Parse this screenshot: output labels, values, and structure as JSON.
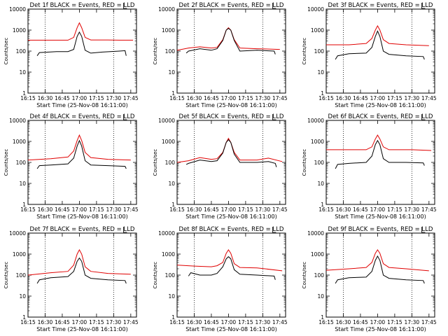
{
  "chart_data": {
    "type": "line",
    "title_template": "Det {n}f BLACK = Events, RED = LLD",
    "start_time_label": "Start Time (25-Nov-08 16:11:00)",
    "ylabel": "Counts/sec",
    "x_ticks": [
      "16:15",
      "16:30",
      "16:45",
      "17:00",
      "17:15",
      "17:30",
      "17:45"
    ],
    "y_ticks": [
      "1",
      "10",
      "100",
      "1000",
      "10000"
    ],
    "yscale": "log",
    "ylim": [
      1,
      10000
    ],
    "xlim_minutes": [
      0,
      95
    ],
    "vlines": [
      "16:30",
      "17:30"
    ],
    "series_colors": {
      "events": "#000000",
      "lld": "#e00000"
    },
    "panels": [
      {
        "title": "Det 1f BLACK = Events, RED = LLD",
        "lld": [
          [
            0,
            330
          ],
          [
            25,
            330
          ],
          [
            35,
            330
          ],
          [
            40,
            450
          ],
          [
            43,
            1300
          ],
          [
            45,
            2200
          ],
          [
            47,
            1300
          ],
          [
            50,
            450
          ],
          [
            55,
            340
          ],
          [
            70,
            340
          ],
          [
            80,
            330
          ],
          [
            92,
            330
          ]
        ],
        "events": [
          [
            8,
            60
          ],
          [
            10,
            85
          ],
          [
            25,
            95
          ],
          [
            35,
            95
          ],
          [
            40,
            120
          ],
          [
            43,
            500
          ],
          [
            45,
            800
          ],
          [
            47,
            500
          ],
          [
            50,
            110
          ],
          [
            55,
            80
          ],
          [
            65,
            90
          ],
          [
            80,
            100
          ],
          [
            85,
            105
          ],
          [
            86,
            60
          ]
        ]
      },
      {
        "title": "Det 2f BLACK = Events, RED = LLD",
        "lld": [
          [
            0,
            110
          ],
          [
            10,
            140
          ],
          [
            20,
            160
          ],
          [
            30,
            140
          ],
          [
            35,
            150
          ],
          [
            40,
            350
          ],
          [
            43,
            1000
          ],
          [
            45,
            1300
          ],
          [
            47,
            1000
          ],
          [
            50,
            350
          ],
          [
            55,
            140
          ],
          [
            70,
            130
          ],
          [
            90,
            120
          ]
        ],
        "events": [
          [
            8,
            80
          ],
          [
            10,
            100
          ],
          [
            20,
            130
          ],
          [
            30,
            110
          ],
          [
            35,
            130
          ],
          [
            40,
            320
          ],
          [
            43,
            1000
          ],
          [
            45,
            1200
          ],
          [
            47,
            1000
          ],
          [
            50,
            320
          ],
          [
            55,
            100
          ],
          [
            70,
            110
          ],
          [
            85,
            100
          ],
          [
            86,
            70
          ]
        ]
      },
      {
        "title": "Det 3f BLACK = Events, RED = LLD",
        "lld": [
          [
            0,
            200
          ],
          [
            20,
            200
          ],
          [
            35,
            230
          ],
          [
            40,
            400
          ],
          [
            43,
            1000
          ],
          [
            45,
            1600
          ],
          [
            47,
            1000
          ],
          [
            50,
            350
          ],
          [
            55,
            230
          ],
          [
            70,
            200
          ],
          [
            90,
            180
          ]
        ],
        "events": [
          [
            8,
            40
          ],
          [
            10,
            60
          ],
          [
            20,
            75
          ],
          [
            35,
            80
          ],
          [
            40,
            150
          ],
          [
            43,
            500
          ],
          [
            45,
            900
          ],
          [
            47,
            500
          ],
          [
            50,
            100
          ],
          [
            55,
            70
          ],
          [
            70,
            60
          ],
          [
            85,
            55
          ],
          [
            86,
            40
          ]
        ]
      },
      {
        "title": "Det 4f BLACK = Events, RED = LLD",
        "lld": [
          [
            0,
            130
          ],
          [
            20,
            150
          ],
          [
            35,
            180
          ],
          [
            40,
            350
          ],
          [
            43,
            1100
          ],
          [
            45,
            2000
          ],
          [
            47,
            1100
          ],
          [
            50,
            300
          ],
          [
            55,
            170
          ],
          [
            70,
            140
          ],
          [
            90,
            130
          ]
        ],
        "events": [
          [
            8,
            50
          ],
          [
            10,
            70
          ],
          [
            20,
            75
          ],
          [
            35,
            85
          ],
          [
            40,
            160
          ],
          [
            43,
            600
          ],
          [
            45,
            1100
          ],
          [
            47,
            600
          ],
          [
            50,
            120
          ],
          [
            55,
            75
          ],
          [
            70,
            70
          ],
          [
            85,
            65
          ],
          [
            86,
            50
          ]
        ]
      },
      {
        "title": "Det 5f BLACK = Events, RED = LLD",
        "lld": [
          [
            0,
            100
          ],
          [
            10,
            120
          ],
          [
            20,
            170
          ],
          [
            30,
            140
          ],
          [
            35,
            150
          ],
          [
            40,
            300
          ],
          [
            43,
            900
          ],
          [
            45,
            1400
          ],
          [
            47,
            900
          ],
          [
            50,
            300
          ],
          [
            55,
            130
          ],
          [
            70,
            130
          ],
          [
            80,
            160
          ],
          [
            92,
            110
          ]
        ],
        "events": [
          [
            8,
            80
          ],
          [
            10,
            90
          ],
          [
            20,
            130
          ],
          [
            30,
            110
          ],
          [
            35,
            120
          ],
          [
            40,
            280
          ],
          [
            43,
            900
          ],
          [
            45,
            1200
          ],
          [
            47,
            900
          ],
          [
            50,
            250
          ],
          [
            55,
            100
          ],
          [
            70,
            100
          ],
          [
            80,
            110
          ],
          [
            86,
            90
          ],
          [
            87,
            60
          ]
        ]
      },
      {
        "title": "Det 6f BLACK = Events, RED = LLD",
        "lld": [
          [
            0,
            400
          ],
          [
            20,
            400
          ],
          [
            35,
            400
          ],
          [
            40,
            550
          ],
          [
            43,
            1300
          ],
          [
            45,
            2000
          ],
          [
            47,
            1300
          ],
          [
            50,
            550
          ],
          [
            55,
            400
          ],
          [
            75,
            400
          ],
          [
            92,
            370
          ]
        ],
        "events": [
          [
            8,
            50
          ],
          [
            10,
            80
          ],
          [
            20,
            90
          ],
          [
            35,
            100
          ],
          [
            40,
            200
          ],
          [
            43,
            700
          ],
          [
            45,
            1100
          ],
          [
            47,
            700
          ],
          [
            50,
            150
          ],
          [
            55,
            100
          ],
          [
            70,
            100
          ],
          [
            85,
            95
          ],
          [
            86,
            70
          ]
        ]
      },
      {
        "title": "Det 7f BLACK = Events, RED = LLD",
        "lld": [
          [
            0,
            100
          ],
          [
            20,
            130
          ],
          [
            35,
            150
          ],
          [
            40,
            300
          ],
          [
            43,
            1000
          ],
          [
            45,
            1600
          ],
          [
            47,
            1000
          ],
          [
            50,
            250
          ],
          [
            55,
            150
          ],
          [
            70,
            120
          ],
          [
            90,
            110
          ]
        ],
        "events": [
          [
            8,
            40
          ],
          [
            10,
            60
          ],
          [
            20,
            75
          ],
          [
            35,
            85
          ],
          [
            40,
            150
          ],
          [
            43,
            450
          ],
          [
            45,
            650
          ],
          [
            47,
            450
          ],
          [
            50,
            100
          ],
          [
            55,
            70
          ],
          [
            70,
            60
          ],
          [
            85,
            55
          ],
          [
            86,
            40
          ]
        ]
      },
      {
        "title": "Det 8f BLACK = Events, RED = LLD",
        "lld": [
          [
            0,
            300
          ],
          [
            15,
            270
          ],
          [
            30,
            250
          ],
          [
            35,
            280
          ],
          [
            40,
            400
          ],
          [
            43,
            1100
          ],
          [
            45,
            1600
          ],
          [
            47,
            1100
          ],
          [
            50,
            350
          ],
          [
            55,
            230
          ],
          [
            70,
            220
          ],
          [
            92,
            160
          ]
        ],
        "events": [
          [
            10,
            90
          ],
          [
            12,
            130
          ],
          [
            20,
            100
          ],
          [
            30,
            100
          ],
          [
            35,
            120
          ],
          [
            40,
            250
          ],
          [
            43,
            600
          ],
          [
            45,
            750
          ],
          [
            47,
            600
          ],
          [
            50,
            180
          ],
          [
            55,
            110
          ],
          [
            70,
            100
          ],
          [
            85,
            90
          ],
          [
            86,
            60
          ]
        ]
      },
      {
        "title": "Det 9f BLACK = Events, RED = LLD",
        "lld": [
          [
            0,
            170
          ],
          [
            20,
            200
          ],
          [
            35,
            230
          ],
          [
            40,
            400
          ],
          [
            43,
            1100
          ],
          [
            45,
            1600
          ],
          [
            47,
            1100
          ],
          [
            50,
            350
          ],
          [
            55,
            230
          ],
          [
            70,
            200
          ],
          [
            90,
            160
          ]
        ],
        "events": [
          [
            8,
            40
          ],
          [
            10,
            60
          ],
          [
            20,
            75
          ],
          [
            35,
            80
          ],
          [
            40,
            150
          ],
          [
            43,
            500
          ],
          [
            45,
            800
          ],
          [
            47,
            500
          ],
          [
            50,
            100
          ],
          [
            55,
            70
          ],
          [
            70,
            60
          ],
          [
            85,
            55
          ],
          [
            86,
            40
          ]
        ]
      }
    ]
  }
}
